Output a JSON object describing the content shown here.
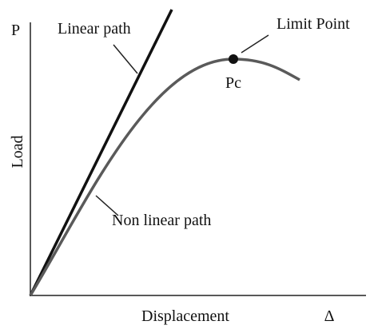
{
  "axes": {
    "y_symbol": "P",
    "y_label": "Load",
    "x_label": "Displacement",
    "x_symbol": "Δ"
  },
  "annotations": {
    "linear_path": "Linear path",
    "limit_point": "Limit Point",
    "critical_load": "Pc",
    "nonlinear_path": "Non linear path"
  }
}
